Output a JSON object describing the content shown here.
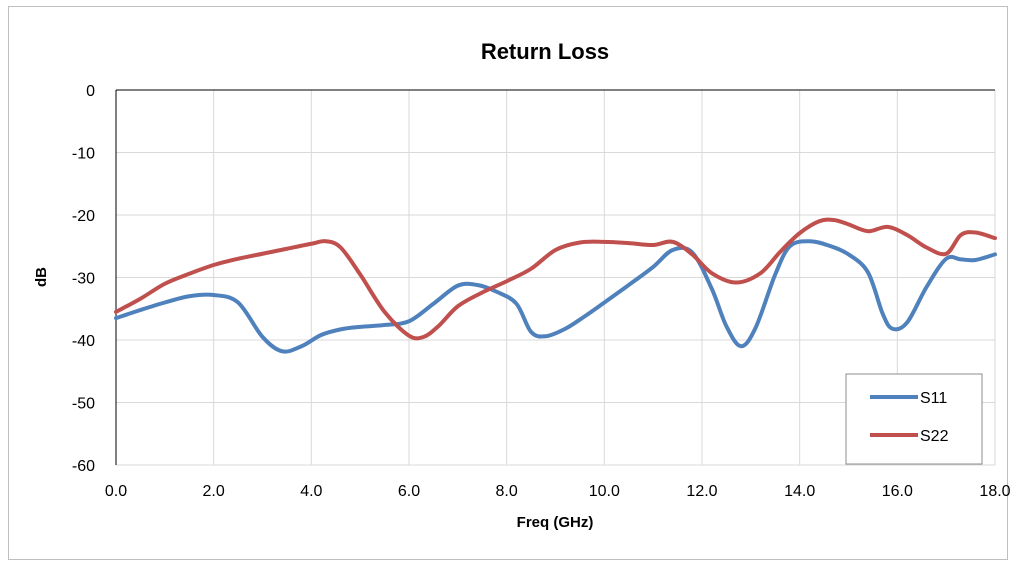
{
  "chart_data": {
    "type": "line",
    "title": "Return Loss",
    "xlabel": "Freq (GHz)",
    "ylabel": "dB",
    "xlim": [
      0,
      18
    ],
    "ylim": [
      -60,
      0
    ],
    "xticks": [
      0,
      2,
      4,
      6,
      8,
      10,
      12,
      14,
      16,
      18
    ],
    "xtick_labels": [
      "0.0",
      "2.0",
      "4.0",
      "6.0",
      "8.0",
      "10.0",
      "12.0",
      "14.0",
      "16.0",
      "18.0"
    ],
    "yticks": [
      0,
      -10,
      -20,
      -30,
      -40,
      -50,
      -60
    ],
    "ytick_labels": [
      "0",
      "-10",
      "-20",
      "-30",
      "-40",
      "-50",
      "-60"
    ],
    "grid": true,
    "legend_position": "bottom-right",
    "series": [
      {
        "name": "S11",
        "color": "#4F81BD",
        "x": [
          0,
          0.5,
          1.0,
          1.5,
          2.0,
          2.5,
          3.0,
          3.4,
          3.8,
          4.2,
          4.6,
          5.0,
          5.5,
          6.0,
          6.5,
          7.0,
          7.4,
          7.8,
          8.2,
          8.5,
          8.8,
          9.2,
          9.6,
          10.0,
          10.5,
          11.0,
          11.4,
          11.8,
          12.2,
          12.5,
          12.8,
          13.1,
          13.5,
          13.8,
          14.2,
          14.6,
          15.0,
          15.4,
          15.7,
          15.9,
          16.2,
          16.6,
          17.0,
          17.3,
          17.6,
          18.0
        ],
        "y": [
          -36.5,
          -35.2,
          -34,
          -33,
          -32.8,
          -34,
          -39.5,
          -41.8,
          -41,
          -39.2,
          -38.3,
          -37.9,
          -37.6,
          -37,
          -34.2,
          -31.3,
          -31.2,
          -32.3,
          -34.2,
          -38.7,
          -39.4,
          -38.2,
          -36.2,
          -34,
          -31.2,
          -28.3,
          -25.6,
          -26,
          -31.8,
          -37.8,
          -41.0,
          -38,
          -29.5,
          -25,
          -24.2,
          -24.9,
          -26.3,
          -29.2,
          -35.8,
          -38.2,
          -37.2,
          -31.5,
          -27,
          -27.1,
          -27.2,
          -26.3
        ]
      },
      {
        "name": "S22",
        "color": "#C0504D",
        "x": [
          0,
          0.5,
          1.0,
          1.5,
          2.0,
          2.5,
          3.0,
          3.5,
          4.0,
          4.3,
          4.6,
          5.0,
          5.5,
          6.0,
          6.3,
          6.6,
          7.0,
          7.5,
          8.0,
          8.5,
          9.0,
          9.5,
          10.0,
          10.5,
          11.0,
          11.4,
          11.8,
          12.2,
          12.7,
          13.2,
          13.6,
          14.0,
          14.4,
          14.7,
          15.0,
          15.4,
          15.8,
          16.2,
          16.6,
          17.0,
          17.3,
          17.6,
          18.0
        ],
        "y": [
          -35.5,
          -33.4,
          -31,
          -29.4,
          -28,
          -27,
          -26.2,
          -25.4,
          -24.6,
          -24.2,
          -25.2,
          -29.5,
          -35.5,
          -39.3,
          -39.5,
          -37.8,
          -34.6,
          -32.4,
          -30.6,
          -28.6,
          -25.6,
          -24.4,
          -24.3,
          -24.5,
          -24.8,
          -24.3,
          -26.3,
          -29.3,
          -30.8,
          -29.3,
          -25.9,
          -22.9,
          -21,
          -20.8,
          -21.5,
          -22.6,
          -21.9,
          -23.2,
          -25.2,
          -26.2,
          -23.2,
          -22.8,
          -23.7
        ]
      }
    ]
  }
}
